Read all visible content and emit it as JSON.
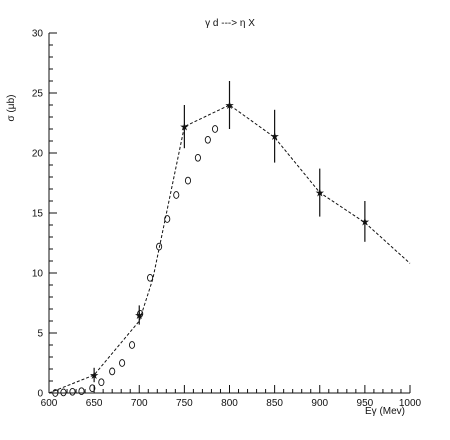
{
  "chart_data": {
    "type": "scatter",
    "title": "γ d ---> η X",
    "xlabel": "Eγ (Mev)",
    "ylabel": "σ (μb)",
    "xlim": [
      600,
      1000
    ],
    "ylim": [
      0,
      30
    ],
    "x_ticks": [
      600,
      650,
      700,
      750,
      800,
      850,
      900,
      950,
      1000
    ],
    "y_ticks": [
      0,
      5,
      10,
      15,
      20,
      25,
      30
    ],
    "grid": false,
    "series": [
      {
        "marker": "star",
        "points": [
          {
            "x": 650,
            "y": 1.5,
            "err": 0.6
          },
          {
            "x": 700,
            "y": 6.5,
            "err": 0.8
          },
          {
            "x": 750,
            "y": 22.2,
            "err": 1.8
          },
          {
            "x": 800,
            "y": 24.0,
            "err": 2.0
          },
          {
            "x": 850,
            "y": 21.4,
            "err": 2.2
          },
          {
            "x": 900,
            "y": 16.7,
            "err": 2.0
          },
          {
            "x": 950,
            "y": 14.3,
            "err": 1.7
          }
        ]
      },
      {
        "marker": "circle",
        "points": [
          {
            "x": 607,
            "y": 0.0
          },
          {
            "x": 616,
            "y": 0.05
          },
          {
            "x": 626,
            "y": 0.1
          },
          {
            "x": 636,
            "y": 0.15
          },
          {
            "x": 648,
            "y": 0.4
          },
          {
            "x": 658,
            "y": 0.9
          },
          {
            "x": 670,
            "y": 1.8
          },
          {
            "x": 681,
            "y": 2.5
          },
          {
            "x": 692,
            "y": 4.0
          },
          {
            "x": 701,
            "y": 6.6
          },
          {
            "x": 712,
            "y": 9.6
          },
          {
            "x": 722,
            "y": 12.2
          },
          {
            "x": 731,
            "y": 14.5
          },
          {
            "x": 741,
            "y": 16.5
          },
          {
            "x": 754,
            "y": 17.7
          },
          {
            "x": 765,
            "y": 19.6
          },
          {
            "x": 776,
            "y": 21.1
          },
          {
            "x": 784,
            "y": 22.0
          }
        ]
      },
      {
        "marker": "dashed-line",
        "points": [
          {
            "x": 600,
            "y": 0.0
          },
          {
            "x": 650,
            "y": 1.5
          },
          {
            "x": 700,
            "y": 6.0
          },
          {
            "x": 715,
            "y": 9.5
          },
          {
            "x": 750,
            "y": 22.2
          },
          {
            "x": 800,
            "y": 24.0
          },
          {
            "x": 850,
            "y": 21.3
          },
          {
            "x": 900,
            "y": 16.7
          },
          {
            "x": 950,
            "y": 14.2
          },
          {
            "x": 1000,
            "y": 10.8
          }
        ]
      }
    ]
  }
}
